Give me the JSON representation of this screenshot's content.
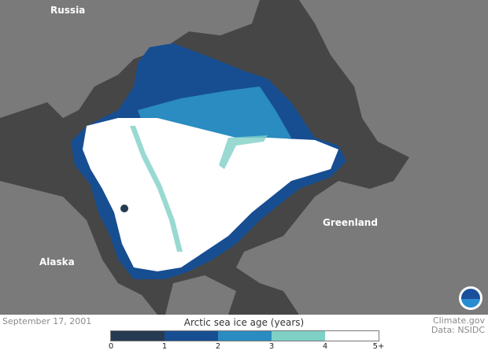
{
  "map": {
    "labels": {
      "russia": "Russia",
      "greenland": "Greenland",
      "alaska": "Alaska"
    },
    "colors": {
      "ocean": "#464646",
      "land": "#7a7a7a"
    }
  },
  "footer": {
    "date": "September 17, 2001",
    "credit_line1": "Climate.gov",
    "credit_line2": "Data: NSIDC",
    "logo": "NOAA"
  },
  "legend": {
    "title": "Arctic sea ice age (years)",
    "bins": [
      {
        "color": "#263a52"
      },
      {
        "color": "#174e92"
      },
      {
        "color": "#2a8cc0"
      },
      {
        "color": "#7fd0c7"
      },
      {
        "color": "#ffffff"
      }
    ],
    "ticks": [
      "0",
      "1",
      "2",
      "3",
      "4",
      "5+"
    ]
  }
}
